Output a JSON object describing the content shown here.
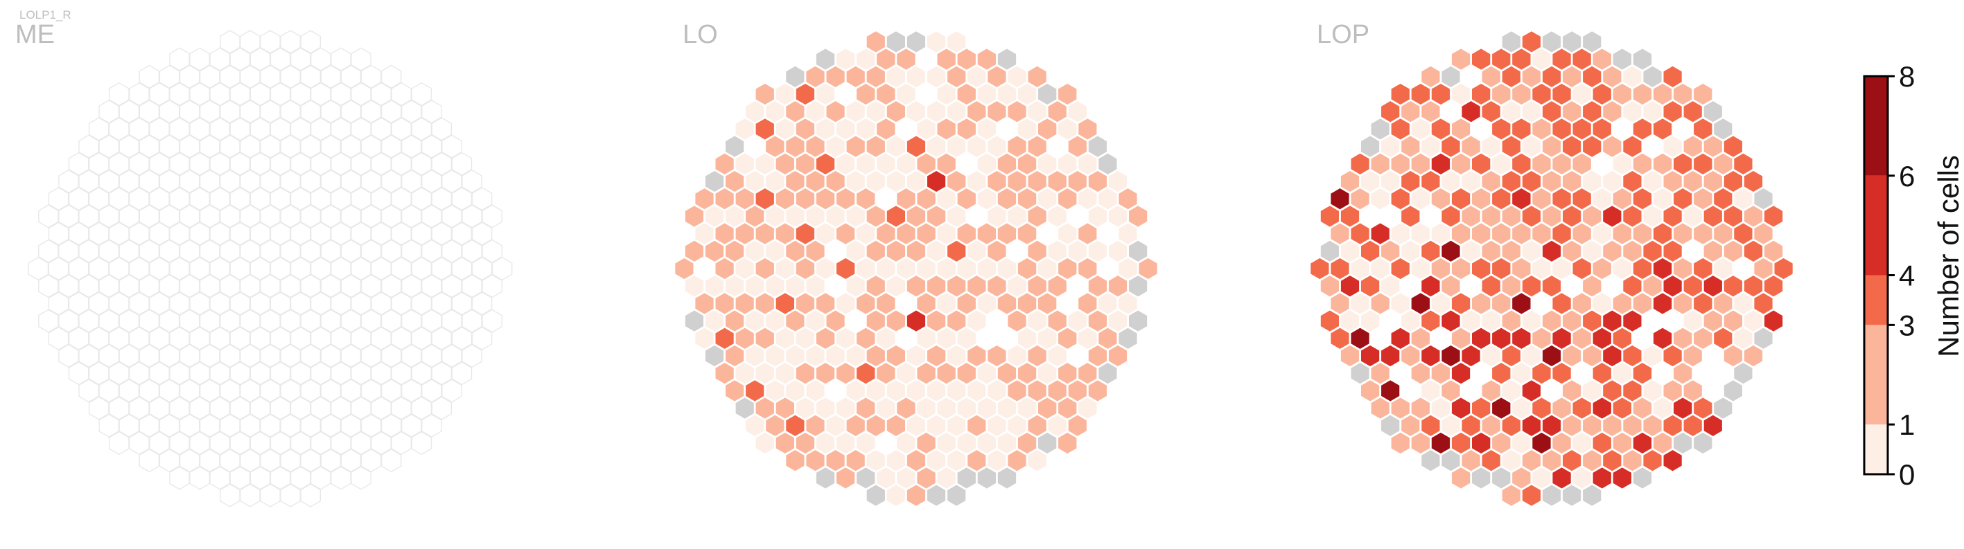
{
  "chart_data": {
    "type": "heatmap",
    "neuron_type": "LOLP1_R",
    "colorbar": {
      "label": "Number of cells",
      "ticks": [
        0,
        1,
        3,
        4,
        6,
        8
      ],
      "bins": [
        {
          "from": 0,
          "to": 1,
          "color": "#fdeee6"
        },
        {
          "from": 1,
          "to": 3,
          "color": "#fbb59b"
        },
        {
          "from": 3,
          "to": 4,
          "color": "#f26a4a"
        },
        {
          "from": 4,
          "to": 6,
          "color": "#d62d26"
        },
        {
          "from": 6,
          "to": 8,
          "color": "#9c0f14"
        }
      ],
      "no_data_color": "#d0d0d0"
    },
    "panels": [
      {
        "name": "ME",
        "hex_counts": [
          {
            "col": 34,
            "row": 12,
            "count": 1
          },
          {
            "col": 36,
            "row": 20,
            "count": 1
          }
        ]
      },
      {
        "name": "LO",
        "hex_counts": [
          {
            "col": 8,
            "row": 4,
            "count": 1
          },
          {
            "col": 9,
            "row": 4,
            "count": 2
          },
          {
            "col": 10,
            "row": 4,
            "count": 1
          },
          {
            "col": 12,
            "row": 5,
            "count": 2
          },
          {
            "col": 14,
            "row": 5,
            "count": 3
          },
          {
            "col": 9,
            "row": 6,
            "count": 2
          },
          {
            "col": 11,
            "row": 6,
            "count": 2
          },
          {
            "col": 16,
            "row": 6,
            "count": 2
          },
          {
            "col": 6,
            "row": 7,
            "count": 2
          },
          {
            "col": 12,
            "row": 7,
            "count": 3
          },
          {
            "col": 18,
            "row": 7,
            "count": 2
          },
          {
            "col": 8,
            "row": 8,
            "count": 3
          },
          {
            "col": 13,
            "row": 8,
            "count": 2
          },
          {
            "col": 20,
            "row": 8,
            "count": 3
          },
          {
            "col": 10,
            "row": 9,
            "count": 2
          },
          {
            "col": 15,
            "row": 9,
            "count": 3
          },
          {
            "col": 21,
            "row": 10,
            "count": 4
          },
          {
            "col": 7,
            "row": 10,
            "count": 2
          },
          {
            "col": 12,
            "row": 11,
            "count": 3
          },
          {
            "col": 17,
            "row": 11,
            "count": 2
          },
          {
            "col": 9,
            "row": 12,
            "count": 2
          },
          {
            "col": 19,
            "row": 12,
            "count": 3
          },
          {
            "col": 14,
            "row": 13,
            "count": 3
          },
          {
            "col": 5,
            "row": 13,
            "count": 2
          },
          {
            "col": 11,
            "row": 14,
            "count": 2
          },
          {
            "col": 22,
            "row": 14,
            "count": 3
          },
          {
            "col": 16,
            "row": 15,
            "count": 3
          },
          {
            "col": 8,
            "row": 15,
            "count": 2
          },
          {
            "col": 18,
            "row": 16,
            "count": 2
          },
          {
            "col": 13,
            "row": 17,
            "count": 3
          },
          {
            "col": 6,
            "row": 17,
            "count": 2
          },
          {
            "col": 20,
            "row": 18,
            "count": 4
          },
          {
            "col": 10,
            "row": 19,
            "count": 3
          },
          {
            "col": 15,
            "row": 19,
            "count": 2
          },
          {
            "col": 17,
            "row": 21,
            "count": 3
          },
          {
            "col": 8,
            "row": 21,
            "count": 2
          },
          {
            "col": 12,
            "row": 22,
            "count": 3
          },
          {
            "col": 19,
            "row": 23,
            "count": 2
          },
          {
            "col": 14,
            "row": 24,
            "count": 3
          },
          {
            "col": 10,
            "row": 26,
            "count": 2
          },
          {
            "col": 16,
            "row": 27,
            "count": 2
          },
          {
            "col": 12,
            "row": 29,
            "count": 2
          }
        ]
      },
      {
        "name": "LOP",
        "hex_counts": [
          {
            "col": 8,
            "row": 6,
            "count": 4
          },
          {
            "col": 10,
            "row": 7,
            "count": 3
          },
          {
            "col": 12,
            "row": 5,
            "count": 3
          },
          {
            "col": 16,
            "row": 6,
            "count": 4
          },
          {
            "col": 20,
            "row": 7,
            "count": 3
          },
          {
            "col": 14,
            "row": 9,
            "count": 4
          },
          {
            "col": 9,
            "row": 11,
            "count": 6
          },
          {
            "col": 18,
            "row": 11,
            "count": 5
          },
          {
            "col": 23,
            "row": 12,
            "count": 4
          },
          {
            "col": 6,
            "row": 13,
            "count": 6
          },
          {
            "col": 11,
            "row": 13,
            "count": 5
          },
          {
            "col": 15,
            "row": 14,
            "count": 6
          },
          {
            "col": 20,
            "row": 14,
            "count": 5
          },
          {
            "col": 25,
            "row": 15,
            "count": 4
          },
          {
            "col": 4,
            "row": 16,
            "count": 7
          },
          {
            "col": 8,
            "row": 16,
            "count": 7
          },
          {
            "col": 13,
            "row": 17,
            "count": 6
          },
          {
            "col": 18,
            "row": 17,
            "count": 6
          },
          {
            "col": 23,
            "row": 18,
            "count": 5
          },
          {
            "col": 6,
            "row": 19,
            "count": 7
          },
          {
            "col": 10,
            "row": 19,
            "count": 8
          },
          {
            "col": 15,
            "row": 20,
            "count": 7
          },
          {
            "col": 20,
            "row": 20,
            "count": 6
          },
          {
            "col": 4,
            "row": 21,
            "count": 6
          },
          {
            "col": 8,
            "row": 22,
            "count": 7
          },
          {
            "col": 12,
            "row": 22,
            "count": 7
          },
          {
            "col": 17,
            "row": 23,
            "count": 7
          },
          {
            "col": 22,
            "row": 23,
            "count": 5
          },
          {
            "col": 6,
            "row": 24,
            "count": 7
          },
          {
            "col": 10,
            "row": 24,
            "count": 8
          },
          {
            "col": 14,
            "row": 25,
            "count": 7
          },
          {
            "col": 19,
            "row": 25,
            "count": 6
          },
          {
            "col": 8,
            "row": 27,
            "count": 6
          },
          {
            "col": 12,
            "row": 27,
            "count": 7
          },
          {
            "col": 16,
            "row": 28,
            "count": 6
          },
          {
            "col": 11,
            "row": 30,
            "count": 5
          },
          {
            "col": 14,
            "row": 31,
            "count": 4
          }
        ]
      }
    ]
  }
}
